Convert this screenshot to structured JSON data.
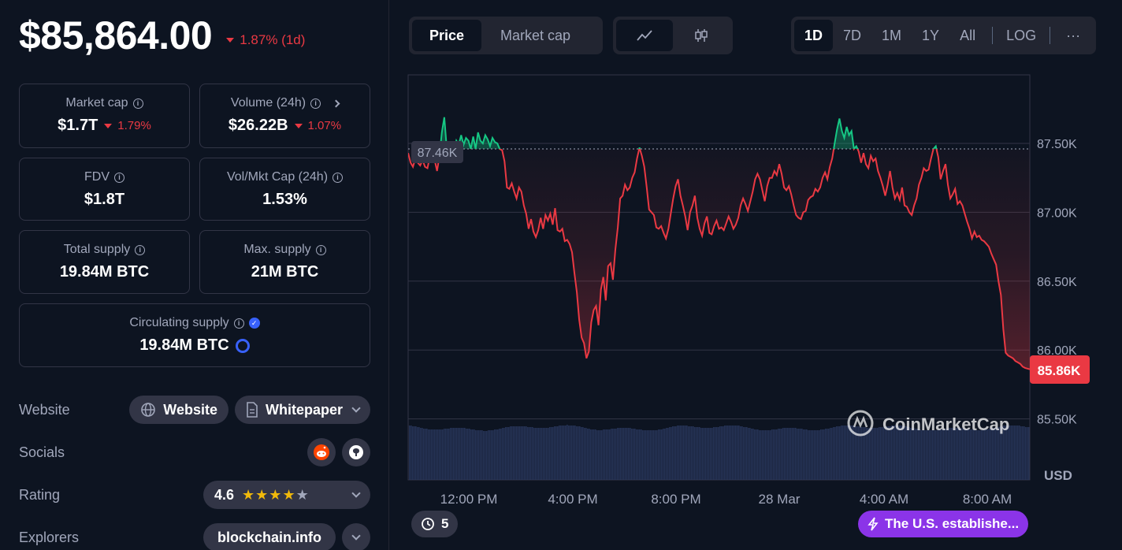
{
  "header": {
    "price": "$85,864.00",
    "change": "1.87% (1d)"
  },
  "stats": {
    "market_cap": {
      "label": "Market cap",
      "value": "$1.7T",
      "change": "1.79%"
    },
    "volume": {
      "label": "Volume (24h)",
      "value": "$26.22B",
      "change": "1.07%"
    },
    "fdv": {
      "label": "FDV",
      "value": "$1.8T"
    },
    "vol_mkt_cap": {
      "label": "Vol/Mkt Cap (24h)",
      "value": "1.53%"
    },
    "total_supply": {
      "label": "Total supply",
      "value": "19.84M BTC"
    },
    "max_supply": {
      "label": "Max. supply",
      "value": "21M BTC"
    },
    "circulating_supply": {
      "label": "Circulating supply",
      "value": "19.84M BTC"
    }
  },
  "links": {
    "website_label": "Website",
    "website_button": "Website",
    "whitepaper_button": "Whitepaper",
    "socials_label": "Socials",
    "rating_label": "Rating",
    "rating_value": "4.6",
    "explorers_label": "Explorers",
    "explorer_button": "blockchain.info"
  },
  "toolbar": {
    "price_tab": "Price",
    "market_cap_tab": "Market cap",
    "ranges": [
      "1D",
      "7D",
      "1M",
      "1Y",
      "All"
    ],
    "active_range": "1D",
    "log_label": "LOG",
    "more_label": "···"
  },
  "colors": {
    "up": "#16c784",
    "down": "#ea3943",
    "accent": "#3861fb",
    "bg": "#0d1421",
    "panel": "#222531",
    "news": "#8b34e8"
  },
  "chart_data": {
    "type": "line",
    "y_ticks": [
      "87.50K",
      "87.00K",
      "86.50K",
      "86.00K",
      "85.50K"
    ],
    "y_tick_values": [
      87500,
      87000,
      86500,
      86000,
      85500
    ],
    "ylim": [
      85500,
      88000
    ],
    "x_ticks": [
      "12:00 PM",
      "4:00 PM",
      "8:00 PM",
      "28 Mar",
      "4:00 AM",
      "8:00 AM"
    ],
    "ylabel": "USD",
    "reference_label": "87.46K",
    "reference_value": 87460,
    "current_label": "85.86K",
    "current_value": 85860,
    "watermark": "CoinMarketCap",
    "series": [
      {
        "values": [
          87430,
          87360,
          87330,
          87390,
          87360,
          87340,
          87380,
          87330,
          87320,
          87400,
          87420,
          87380,
          87300,
          87410,
          87580,
          87690,
          87470,
          87430,
          87360,
          87440,
          87520,
          87490,
          87560,
          87490,
          87540,
          87520,
          87460,
          87550,
          87460,
          87580,
          87520,
          87500,
          87560,
          87530,
          87480,
          87540,
          87510,
          87500,
          87460,
          87450,
          87370,
          87180,
          87170,
          87210,
          87150,
          87100,
          87180,
          87150,
          87050,
          86990,
          86880,
          86950,
          86860,
          86820,
          86870,
          86960,
          86880,
          86980,
          86940,
          86990,
          86910,
          87030,
          86870,
          86860,
          86880,
          86790,
          86800,
          86770,
          86710,
          86560,
          86420,
          86220,
          86090,
          86050,
          85940,
          85990,
          86200,
          86290,
          86320,
          86180,
          86440,
          86530,
          86360,
          86610,
          86630,
          86510,
          86730,
          86890,
          87100,
          87120,
          87200,
          87160,
          87180,
          87250,
          87290,
          87390,
          87470,
          87410,
          87330,
          87180,
          87020,
          87000,
          86980,
          86890,
          86880,
          86900,
          86850,
          86810,
          86880,
          86990,
          87100,
          87190,
          87240,
          87120,
          87050,
          86970,
          86870,
          87000,
          87050,
          87120,
          86960,
          86880,
          86830,
          86920,
          86970,
          86850,
          86840,
          86900,
          86940,
          86880,
          86890,
          86870,
          86920,
          86970,
          86930,
          86880,
          86910,
          86960,
          87050,
          87100,
          87060,
          87010,
          87080,
          87150,
          87240,
          87280,
          87240,
          87160,
          87080,
          87190,
          87250,
          87250,
          87300,
          87270,
          87350,
          87280,
          87180,
          87160,
          87190,
          87130,
          87050,
          86980,
          86960,
          86950,
          87000,
          87010,
          87090,
          87110,
          87120,
          87170,
          87150,
          87180,
          87250,
          87290,
          87240,
          87330,
          87390,
          87500,
          87600,
          87680,
          87590,
          87540,
          87620,
          87560,
          87590,
          87460,
          87480,
          87440,
          87360,
          87430,
          87350,
          87320,
          87410,
          87370,
          87390,
          87300,
          87250,
          87190,
          87120,
          87200,
          87300,
          87180,
          87100,
          87140,
          87090,
          87180,
          87050,
          87040,
          87000,
          86980,
          87050,
          87100,
          87200,
          87250,
          87320,
          87300,
          87310,
          87390,
          87460,
          87480,
          87400,
          87240,
          87300,
          87350,
          87200,
          87100,
          87130,
          87170,
          87060,
          87080,
          87050,
          86990,
          86930,
          86880,
          86810,
          86860,
          86820,
          86830,
          86800,
          86790,
          86770,
          86750,
          86700,
          86660,
          86620,
          86500,
          86400,
          86150,
          85980,
          85960,
          85950,
          85940,
          85920,
          85910,
          85900,
          85880,
          85870,
          85865,
          85860
        ]
      }
    ]
  },
  "bottom": {
    "history_count": "5",
    "news_text": "The U.S. establishe..."
  }
}
